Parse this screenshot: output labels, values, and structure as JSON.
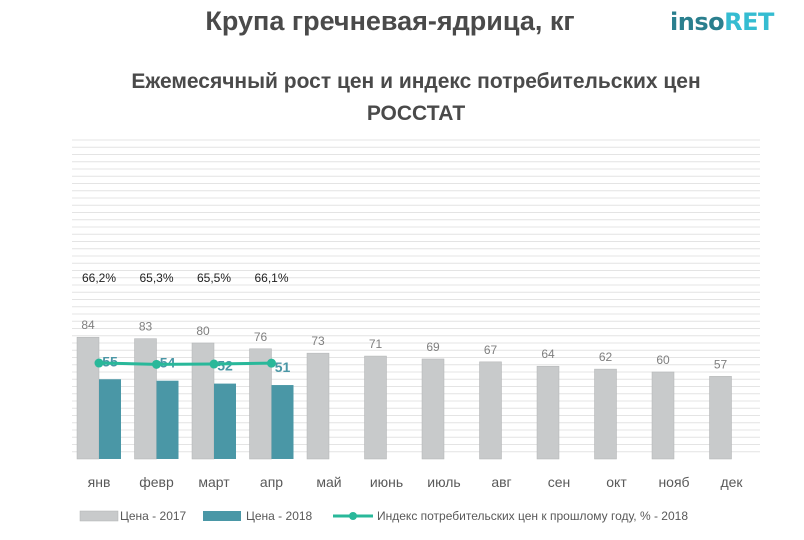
{
  "header": {
    "title": "Крупа гречневая-ядрица, кг",
    "logo_part1": "inso",
    "logo_part2": "RET",
    "subtitle_line1": "Ежемесячный рост цен и индекс потребительских цен",
    "subtitle_line2": "РОССТАТ"
  },
  "colors": {
    "series_2017": "#c8cacb",
    "series_2018": "#4a97a6",
    "index_line": "#29b89a",
    "grid": "#e4e4e4",
    "text": "#595959"
  },
  "chart_data": {
    "type": "bar",
    "categories": [
      "янв",
      "февр",
      "март",
      "апр",
      "май",
      "июнь",
      "июль",
      "авг",
      "сен",
      "окт",
      "нояб",
      "дек"
    ],
    "series": [
      {
        "name": "Цена  - 2017",
        "type": "bar",
        "values": [
          84,
          83,
          80,
          76,
          73,
          71,
          69,
          67,
          64,
          62,
          60,
          57
        ],
        "labels": [
          "84",
          "83",
          "80",
          "76",
          "73",
          "71",
          "69",
          "67",
          "64",
          "62",
          "60",
          "57"
        ]
      },
      {
        "name": "Цена  - 2018",
        "type": "bar",
        "values": [
          55,
          54,
          52,
          51,
          null,
          null,
          null,
          null,
          null,
          null,
          null,
          null
        ],
        "labels": [
          "55",
          "54",
          "52",
          "51"
        ]
      },
      {
        "name": "Индекс потребительских цен к прошлому году, % - 2018",
        "type": "line",
        "values": [
          66.2,
          65.3,
          65.5,
          66.1,
          null,
          null,
          null,
          null,
          null,
          null,
          null,
          null
        ],
        "labels": [
          "66,2%",
          "65,3%",
          "65,5%",
          "66,1%"
        ]
      }
    ],
    "ylim": [
      0,
      220
    ],
    "grid": true,
    "legend_position": "bottom"
  }
}
